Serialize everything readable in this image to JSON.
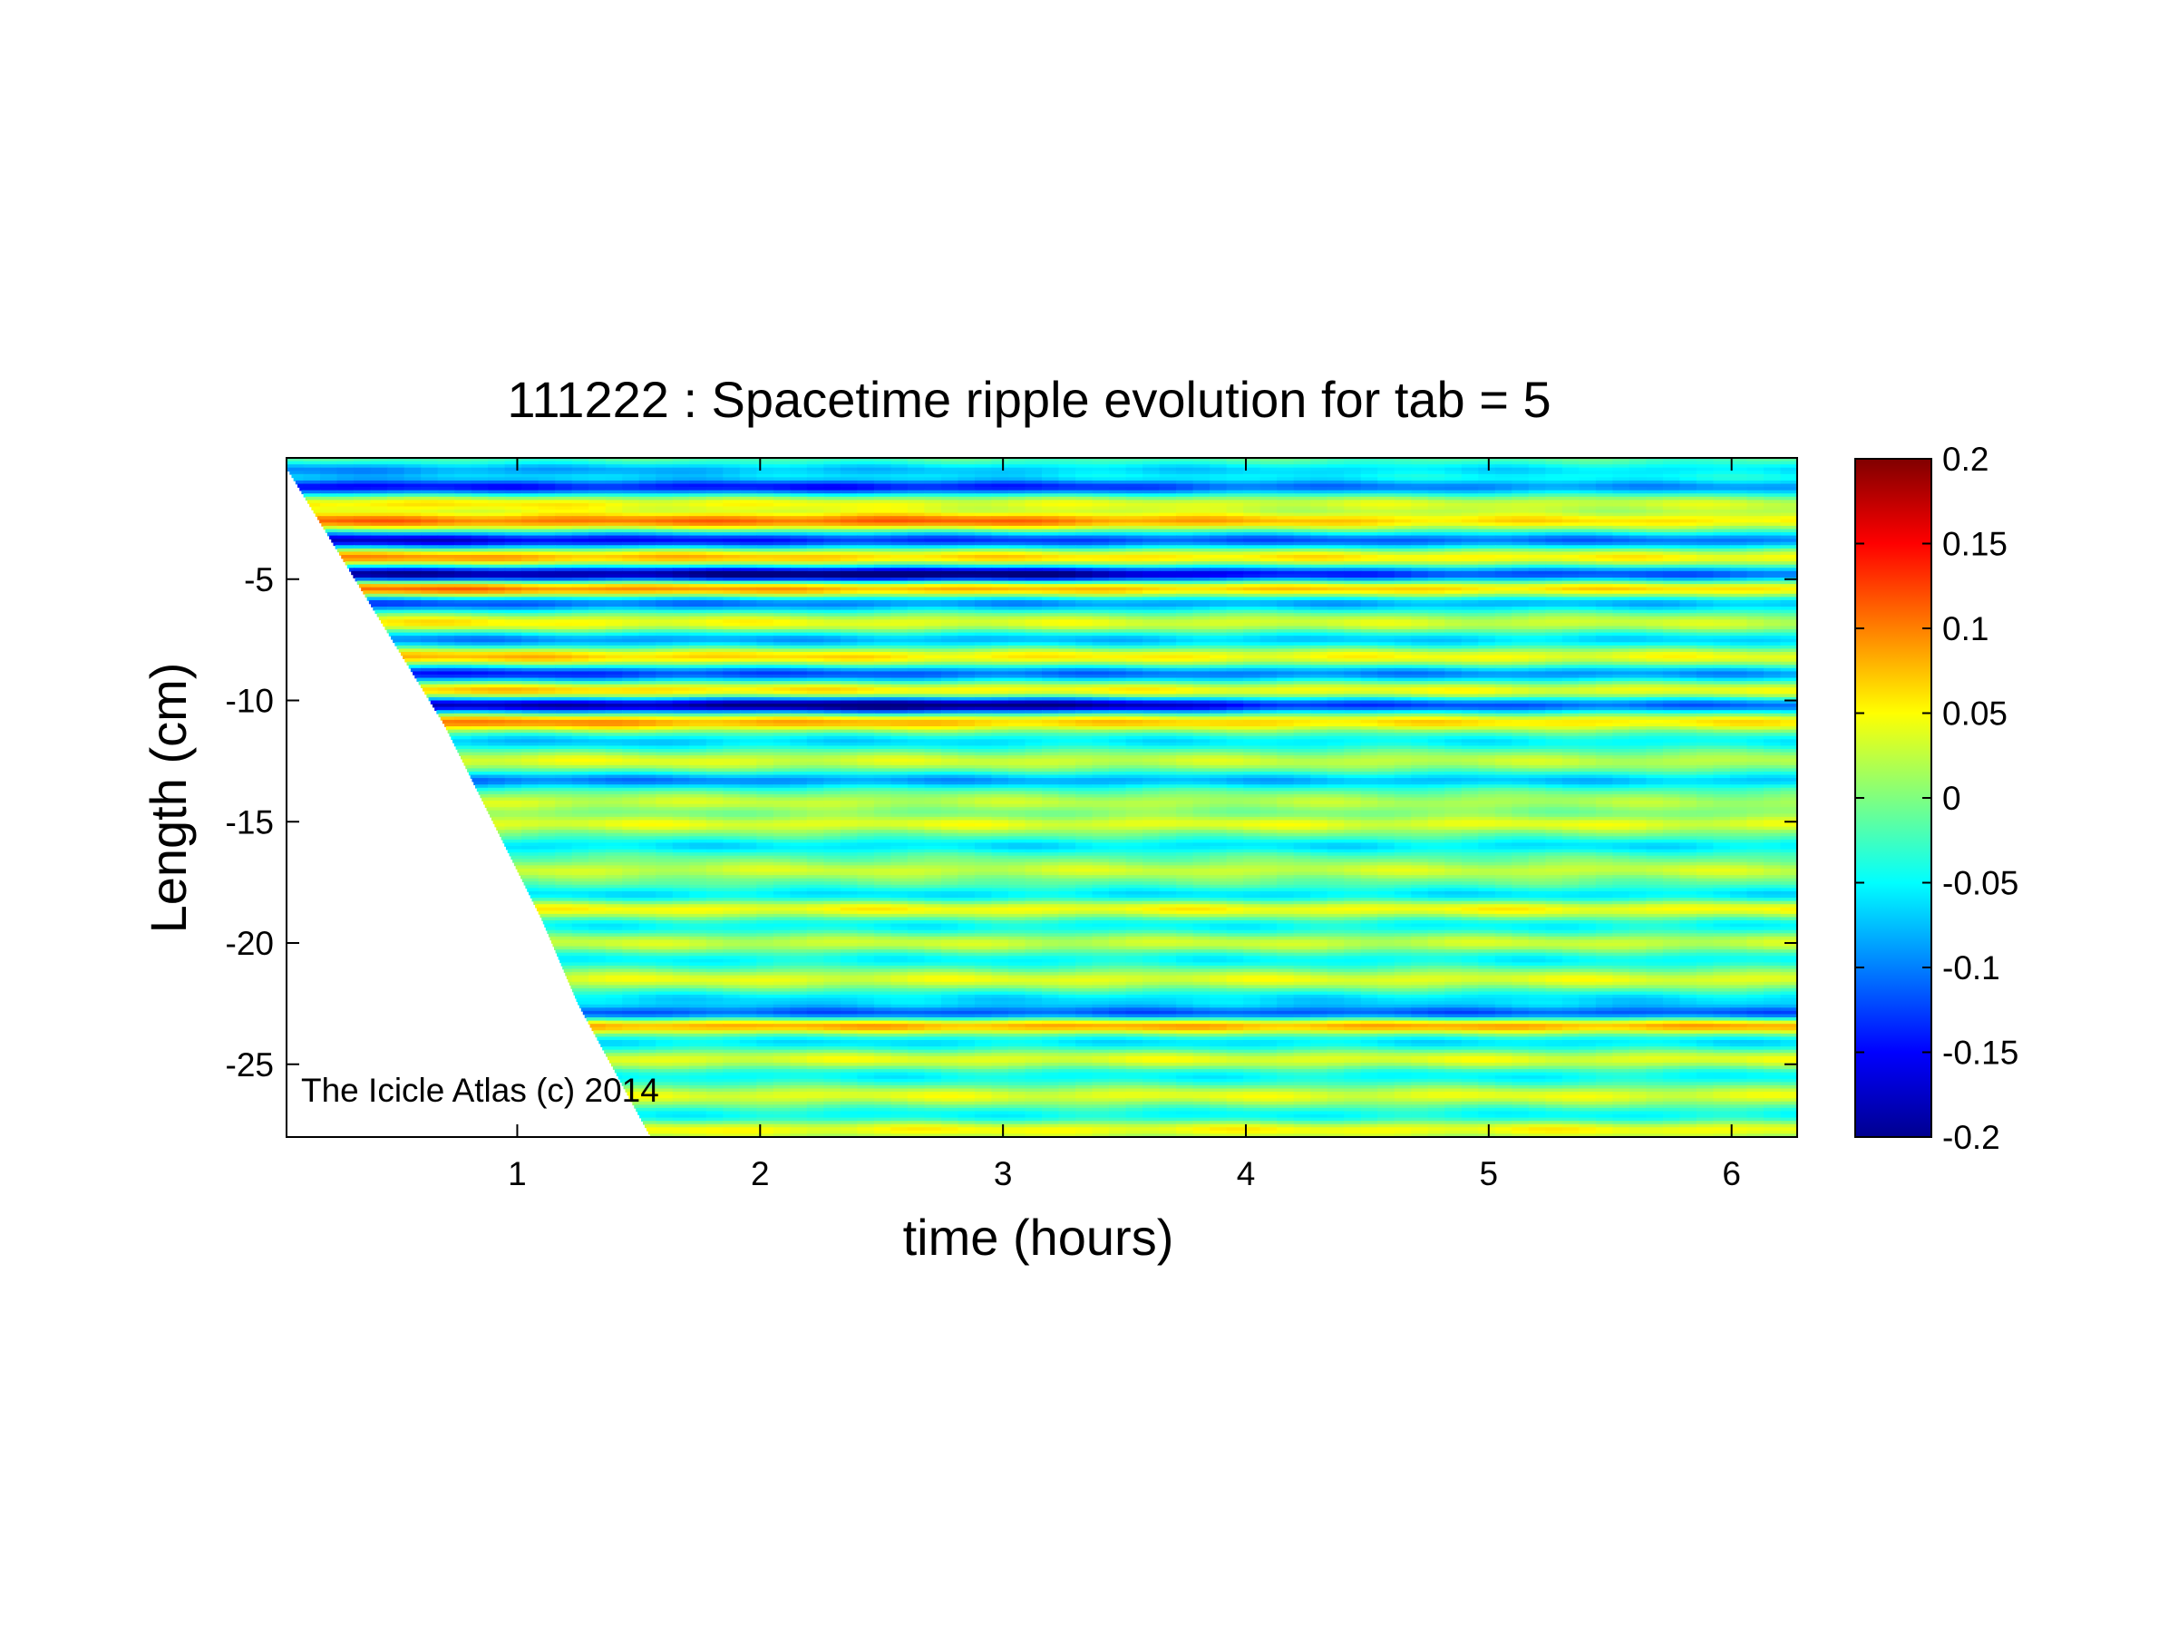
{
  "chart_data": {
    "type": "heatmap",
    "title": "111222 : Spacetime ripple evolution for tab = 5",
    "xlabel": "time (hours)",
    "ylabel": "Length (cm)",
    "xlim": [
      0.05,
      6.27
    ],
    "ylim": [
      -28,
      0
    ],
    "xticks": [
      1,
      2,
      3,
      4,
      5,
      6
    ],
    "yticks": [
      -5,
      -10,
      -15,
      -20,
      -25
    ],
    "grid": false,
    "annotation": "The Icicle Atlas (c) 2014",
    "colormap": "jet",
    "colorbar": {
      "range": [
        -0.2,
        0.2
      ],
      "ticks": [
        "0.2",
        "0.15",
        "0.1",
        "0.05",
        "0",
        "-0.05",
        "-0.1",
        "-0.15",
        "-0.2"
      ]
    },
    "domain_edge": {
      "description": "data present only for length greater than front position at each time",
      "front": [
        [
          0.05,
          -0.4
        ],
        [
          0.7,
          -11
        ],
        [
          1.1,
          -19
        ],
        [
          1.25,
          -22.5
        ],
        [
          1.55,
          -28
        ]
      ]
    },
    "bands": [
      {
        "y": -0.5,
        "amp": -0.07,
        "grow": 0
      },
      {
        "y": -1.2,
        "amp": -0.12,
        "grow": 0.3
      },
      {
        "y": -1.9,
        "amp": 0.06,
        "grow": 0
      },
      {
        "y": -2.6,
        "amp": 0.1,
        "grow": 0.4
      },
      {
        "y": -3.4,
        "amp": -0.14,
        "grow": 0
      },
      {
        "y": -4.1,
        "amp": 0.09,
        "grow": 0
      },
      {
        "y": -4.8,
        "amp": -0.16,
        "grow": 0.5
      },
      {
        "y": -5.4,
        "amp": 0.11,
        "grow": 0
      },
      {
        "y": -6.0,
        "amp": -0.1,
        "grow": 0
      },
      {
        "y": -6.8,
        "amp": 0.06,
        "grow": 0
      },
      {
        "y": -7.5,
        "amp": -0.08,
        "grow": 0
      },
      {
        "y": -8.2,
        "amp": 0.08,
        "grow": 0
      },
      {
        "y": -8.9,
        "amp": -0.12,
        "grow": 0
      },
      {
        "y": -9.6,
        "amp": 0.08,
        "grow": 0
      },
      {
        "y": -10.2,
        "amp": -0.15,
        "grow": 0.6
      },
      {
        "y": -10.9,
        "amp": 0.1,
        "grow": 0
      },
      {
        "y": -11.7,
        "amp": -0.06,
        "grow": 0
      },
      {
        "y": -12.5,
        "amp": 0.05,
        "grow": 0
      },
      {
        "y": -13.3,
        "amp": -0.09,
        "grow": 0
      },
      {
        "y": -14.2,
        "amp": 0.04,
        "grow": 0
      },
      {
        "y": -15.1,
        "amp": 0.05,
        "grow": 0
      },
      {
        "y": -16.0,
        "amp": -0.05,
        "grow": 0
      },
      {
        "y": -17.0,
        "amp": 0.04,
        "grow": 0
      },
      {
        "y": -18.0,
        "amp": -0.05,
        "grow": 0
      },
      {
        "y": -18.6,
        "amp": 0.06,
        "grow": 0
      },
      {
        "y": -19.3,
        "amp": -0.04,
        "grow": 0
      },
      {
        "y": -20.0,
        "amp": 0.04,
        "grow": 0
      },
      {
        "y": -20.7,
        "amp": -0.04,
        "grow": 0
      },
      {
        "y": -21.5,
        "amp": 0.05,
        "grow": 0
      },
      {
        "y": -22.3,
        "amp": -0.05,
        "grow": 0
      },
      {
        "y": -22.9,
        "amp": -0.11,
        "grow": 0
      },
      {
        "y": -23.4,
        "amp": 0.1,
        "grow": 0
      },
      {
        "y": -24.1,
        "amp": -0.05,
        "grow": 0
      },
      {
        "y": -24.8,
        "amp": 0.05,
        "grow": 0
      },
      {
        "y": -25.5,
        "amp": -0.04,
        "grow": 0
      },
      {
        "y": -26.3,
        "amp": 0.05,
        "grow": 0
      },
      {
        "y": -27.1,
        "amp": -0.04,
        "grow": 0
      },
      {
        "y": -27.7,
        "amp": 0.06,
        "grow": 0
      }
    ]
  }
}
